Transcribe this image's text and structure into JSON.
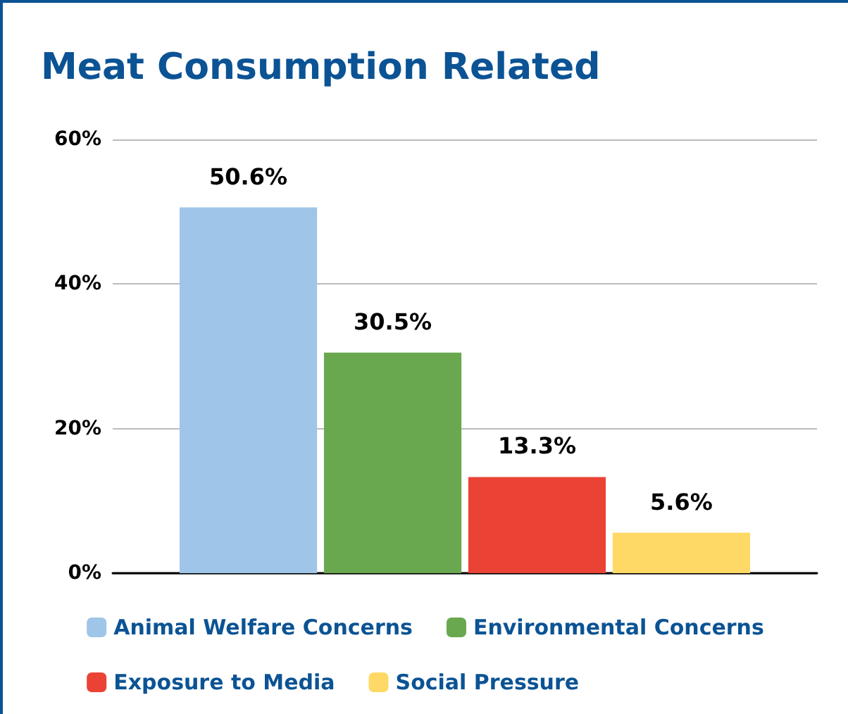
{
  "chart_data": {
    "type": "bar",
    "title": "Meat Consumption Related",
    "categories": [
      null
    ],
    "series": [
      {
        "name": "Animal Welfare Concerns",
        "color": "#9fc5e8",
        "values": [
          50.6
        ],
        "value_labels": [
          "50.6%"
        ]
      },
      {
        "name": "Environmental Concerns",
        "color": "#6aa84f",
        "values": [
          30.5
        ],
        "value_labels": [
          "30.5%"
        ]
      },
      {
        "name": "Exposure to Media",
        "color": "#ea4335",
        "values": [
          13.3
        ],
        "value_labels": [
          "13.3%"
        ]
      },
      {
        "name": "Social Pressure",
        "color": "#ffd966",
        "values": [
          5.6
        ],
        "value_labels": [
          "5.6%"
        ]
      }
    ],
    "ylim": [
      0,
      60
    ],
    "yticks": [
      {
        "value": 0,
        "label": "0%"
      },
      {
        "value": 20,
        "label": "20%"
      },
      {
        "value": 40,
        "label": "40%"
      },
      {
        "value": 60,
        "label": "60%"
      }
    ],
    "grid": "y",
    "legend": "bottom"
  }
}
